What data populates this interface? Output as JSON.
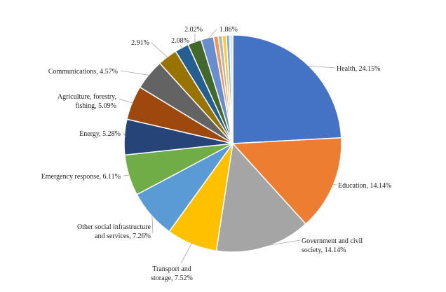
{
  "chart_data": {
    "type": "pie",
    "title": "",
    "start": "12 o'clock, clockwise",
    "slices": [
      {
        "label": [
          "Health, 24.15%"
        ],
        "value": 24.15,
        "color": "#4472C4"
      },
      {
        "label": [
          "Education, 14.14%"
        ],
        "value": 14.14,
        "color": "#ED7D31"
      },
      {
        "label": [
          "Government and civil",
          "society, 14.14%"
        ],
        "value": 14.14,
        "color": "#A5A5A5"
      },
      {
        "label": [
          "Transport and",
          "storage, 7.52%"
        ],
        "value": 7.52,
        "color": "#FFC000"
      },
      {
        "label": [
          "Other social infrastructure",
          "and services, 7.26%"
        ],
        "value": 7.26,
        "color": "#5B9BD5"
      },
      {
        "label": [
          "Emergency response, 6.11%"
        ],
        "value": 6.11,
        "color": "#70AD47"
      },
      {
        "label": [
          "Energy, 5.28%"
        ],
        "value": 5.28,
        "color": "#264478"
      },
      {
        "label": [
          "Agriculture, forestry,",
          "fishing, 5.09%"
        ],
        "value": 5.09,
        "color": "#9E480E"
      },
      {
        "label": [
          "Communications, 4.57%"
        ],
        "value": 4.57,
        "color": "#636363"
      },
      {
        "label": [
          "2.91%"
        ],
        "value": 2.91,
        "color": "#997300"
      },
      {
        "label": [
          "2.08%"
        ],
        "value": 2.08,
        "color": "#255E91"
      },
      {
        "label": [
          "2.02%"
        ],
        "value": 2.02,
        "color": "#43682B"
      },
      {
        "label": [
          "1.86%"
        ],
        "value": 1.86,
        "color": "#698ED0"
      },
      {
        "label": [],
        "value": 0.7,
        "color": "#F1975A"
      },
      {
        "label": [],
        "value": 0.6,
        "color": "#B7B7B7"
      },
      {
        "label": [],
        "value": 0.6,
        "color": "#FFCD33"
      },
      {
        "label": [],
        "value": 0.5,
        "color": "#7CAFDD"
      },
      {
        "label": [],
        "value": 0.47,
        "color": "#D9E1F2"
      }
    ]
  }
}
